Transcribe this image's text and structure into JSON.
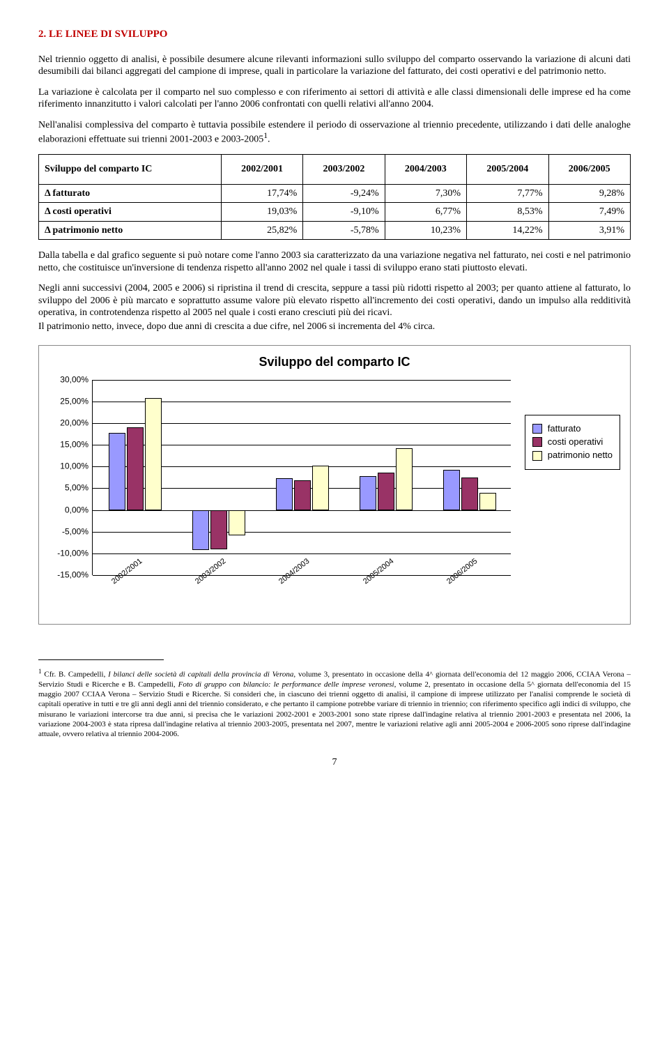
{
  "section": {
    "title": "2. LE LINEE DI SVILUPPO"
  },
  "para1": "Nel triennio oggetto di analisi, è possibile desumere alcune rilevanti informazioni sullo sviluppo del comparto osservando la variazione di alcuni dati desumibili dai bilanci aggregati del campione di imprese, quali in particolare la variazione del fatturato, dei costi operativi e del patrimonio netto.",
  "para2": "La variazione è calcolata per il comparto nel suo complesso e con riferimento ai settori di attività e alle classi dimensionali delle imprese ed ha come riferimento innanzitutto i valori calcolati per l'anno 2006 confrontati con quelli relativi all'anno 2004.",
  "para3a": "Nell'analisi complessiva del comparto è tuttavia possibile estendere il periodo di osservazione al triennio precedente, utilizzando i dati delle analoghe elaborazioni effettuate sui trienni 2001-2003 e 2003-2005",
  "para3b": ".",
  "table": {
    "header": [
      "Sviluppo del comparto IC",
      "2002/2001",
      "2003/2002",
      "2004/2003",
      "2005/2004",
      "2006/2005"
    ],
    "rows": [
      {
        "label": "Δ fatturato",
        "vals": [
          "17,74%",
          "-9,24%",
          "7,30%",
          "7,77%",
          "9,28%"
        ]
      },
      {
        "label": "Δ costi operativi",
        "vals": [
          "19,03%",
          "-9,10%",
          "6,77%",
          "8,53%",
          "7,49%"
        ]
      },
      {
        "label": "Δ patrimonio netto",
        "vals": [
          "25,82%",
          "-5,78%",
          "10,23%",
          "14,22%",
          "3,91%"
        ]
      }
    ]
  },
  "para4": "Dalla tabella e dal grafico seguente si può notare come l'anno 2003 sia caratterizzato da una variazione negativa nel fatturato, nei costi e nel patrimonio netto, che costituisce un'inversione di tendenza rispetto all'anno 2002 nel quale i tassi di sviluppo erano stati piuttosto elevati.",
  "para5": "Negli anni successivi (2004, 2005 e 2006) si ripristina il trend di crescita, seppure a tassi più ridotti rispetto al 2003; per quanto attiene al fatturato, lo sviluppo del 2006 è più marcato e soprattutto assume valore più elevato rispetto all'incremento dei costi operativi, dando un impulso alla redditività operativa, in controtendenza rispetto al 2005 nel quale i costi erano cresciuti più dei ricavi.",
  "para6": "Il patrimonio netto, invece, dopo due anni di crescita a due cifre, nel 2006 si incrementa del 4% circa.",
  "chart": {
    "type": "bar",
    "title": "Sviluppo del comparto IC",
    "categories": [
      "2002/2001",
      "2003/2002",
      "2004/2003",
      "2005/2004",
      "2006/2005"
    ],
    "series": [
      {
        "name": "fatturato",
        "color": "#9999ff",
        "values": [
          17.74,
          -9.24,
          7.3,
          7.77,
          9.28
        ]
      },
      {
        "name": "costi operativi",
        "color": "#993366",
        "values": [
          19.03,
          -9.1,
          6.77,
          8.53,
          7.49
        ]
      },
      {
        "name": "patrimonio netto",
        "color": "#ffffcc",
        "values": [
          25.82,
          -5.78,
          10.23,
          14.22,
          3.91
        ]
      }
    ],
    "ymin": -15,
    "ymax": 30,
    "ystep": 5,
    "yticks": [
      "30,00%",
      "25,00%",
      "20,00%",
      "15,00%",
      "10,00%",
      "5,00%",
      "0,00%",
      "-5,00%",
      "-10,00%",
      "-15,00%"
    ],
    "grid_color": "#000000",
    "background": "#ffffff",
    "label_fontsize": 12,
    "title_fontsize": 18
  },
  "footnote": {
    "marker": "1",
    "lead": " Cfr. B. Campedelli, ",
    "ital1": "I bilanci delle società di capitali della provincia di Verona",
    "mid1": ", volume 3, presentato in occasione della 4^ giornata dell'economia del 12 maggio 2006, CCIAA Verona – Servizio Studi e Ricerche e B. Campedelli, ",
    "ital2": "Foto di gruppo con bilancio: le performance delle imprese veronesi",
    "tail": ", volume 2, presentato in occasione della 5^ giornata dell'economia del 15 maggio 2007 CCIAA Verona – Servizio Studi e Ricerche. Si consideri che, in ciascuno dei trienni oggetto di analisi, il campione di imprese utilizzato per l'analisi comprende le società di capitali operative in tutti e tre gli anni degli anni del triennio considerato, e che pertanto il campione potrebbe variare di triennio in triennio; con riferimento specifico agli indici di sviluppo, che misurano le variazioni intercorse tra due anni, si precisa che le variazioni 2002-2001 e 2003-2001 sono state riprese dall'indagine relativa al triennio 2001-2003 e presentata nel 2006, la variazione 2004-2003 è stata ripresa dall'indagine relativa al triennio 2003-2005, presentata nel 2007, mentre le variazioni relative agli anni 2005-2004 e 2006-2005 sono riprese dall'indagine attuale, ovvero relativa al triennio 2004-2006."
  },
  "page_number": "7"
}
